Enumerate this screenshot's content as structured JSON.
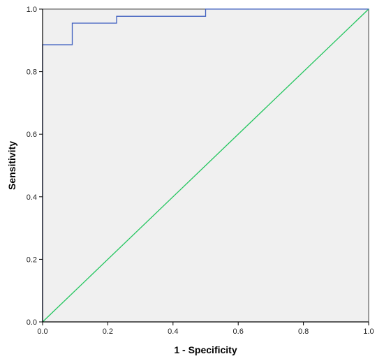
{
  "chart_data": {
    "type": "line",
    "title": "",
    "xlabel": "1 - Specificity",
    "ylabel": "Sensitivity",
    "xlim": [
      0,
      1
    ],
    "ylim": [
      0,
      1
    ],
    "xticks": [
      "0.0",
      "0.2",
      "0.4",
      "0.6",
      "0.8",
      "1.0"
    ],
    "yticks": [
      "0.0",
      "0.2",
      "0.4",
      "0.6",
      "0.8",
      "1.0"
    ],
    "grid": false,
    "legend": "none",
    "series": [
      {
        "kind": "step",
        "color": "#3f5fbf",
        "x": [
          0,
          0,
          0.091,
          0.091,
          0.227,
          0.227,
          0.5,
          0.5,
          1.0
        ],
        "y": [
          0,
          0.886,
          0.886,
          0.955,
          0.955,
          0.977,
          0.977,
          1.0,
          1.0
        ]
      },
      {
        "kind": "reference",
        "color": "#22c55e",
        "x": [
          0,
          1
        ],
        "y": [
          0,
          1
        ]
      }
    ],
    "plot_background": "#f0f0f0"
  }
}
